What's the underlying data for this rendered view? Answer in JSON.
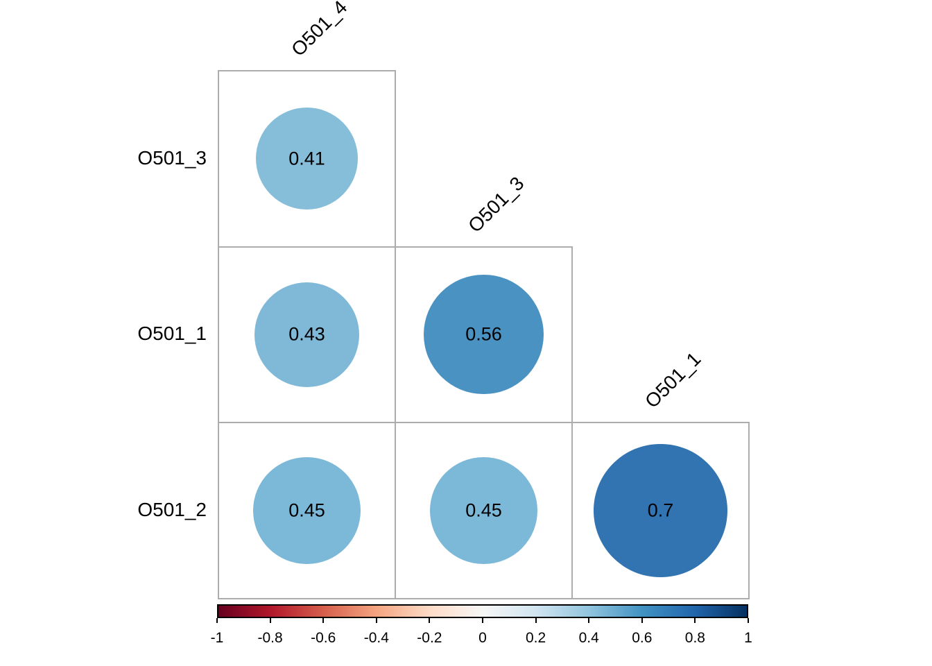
{
  "chart_data": {
    "type": "heatmap",
    "subtype": "correlation-matrix-circles-lower-triangle",
    "title": "",
    "row_labels": [
      "O501_3",
      "O501_1",
      "O501_2"
    ],
    "col_labels": [
      "O501_4",
      "O501_3",
      "O501_1"
    ],
    "cells": [
      {
        "row": 0,
        "col": 0,
        "row_var": "O501_3",
        "col_var": "O501_4",
        "value": 0.41,
        "label": "0.41",
        "color": "#86BDD9"
      },
      {
        "row": 1,
        "col": 0,
        "row_var": "O501_1",
        "col_var": "O501_4",
        "value": 0.43,
        "label": "0.43",
        "color": "#7FB9D7"
      },
      {
        "row": 1,
        "col": 1,
        "row_var": "O501_1",
        "col_var": "O501_3",
        "value": 0.56,
        "label": "0.56",
        "color": "#4A92C2"
      },
      {
        "row": 2,
        "col": 0,
        "row_var": "O501_2",
        "col_var": "O501_4",
        "value": 0.45,
        "label": "0.45",
        "color": "#7CB8D8"
      },
      {
        "row": 2,
        "col": 1,
        "row_var": "O501_2",
        "col_var": "O501_3",
        "value": 0.45,
        "label": "0.45",
        "color": "#7CB8D8"
      },
      {
        "row": 2,
        "col": 2,
        "row_var": "O501_2",
        "col_var": "O501_1",
        "value": 0.7,
        "label": "0.7",
        "color": "#3174B1"
      }
    ],
    "colorbar": {
      "min": -1,
      "max": 1,
      "tick_labels": [
        "-1",
        "-0.8",
        "-0.6",
        "-0.4",
        "-0.2",
        "0",
        "0.2",
        "0.4",
        "0.6",
        "0.8",
        "1"
      ],
      "palette": [
        "#67001F",
        "#B2182B",
        "#D6604D",
        "#F4A582",
        "#FDDBC7",
        "#F7F7F7",
        "#D1E5F0",
        "#92C5DE",
        "#4393C3",
        "#2166AC",
        "#053061"
      ],
      "legend_position": "bottom"
    },
    "colors": {
      "grid_line": "#ACACAC",
      "text": "#000000",
      "background": "#FFFFFF",
      "colorbar_border": "#000000"
    },
    "grid": "lower-triangle",
    "legend_orientation": "horizontal"
  }
}
